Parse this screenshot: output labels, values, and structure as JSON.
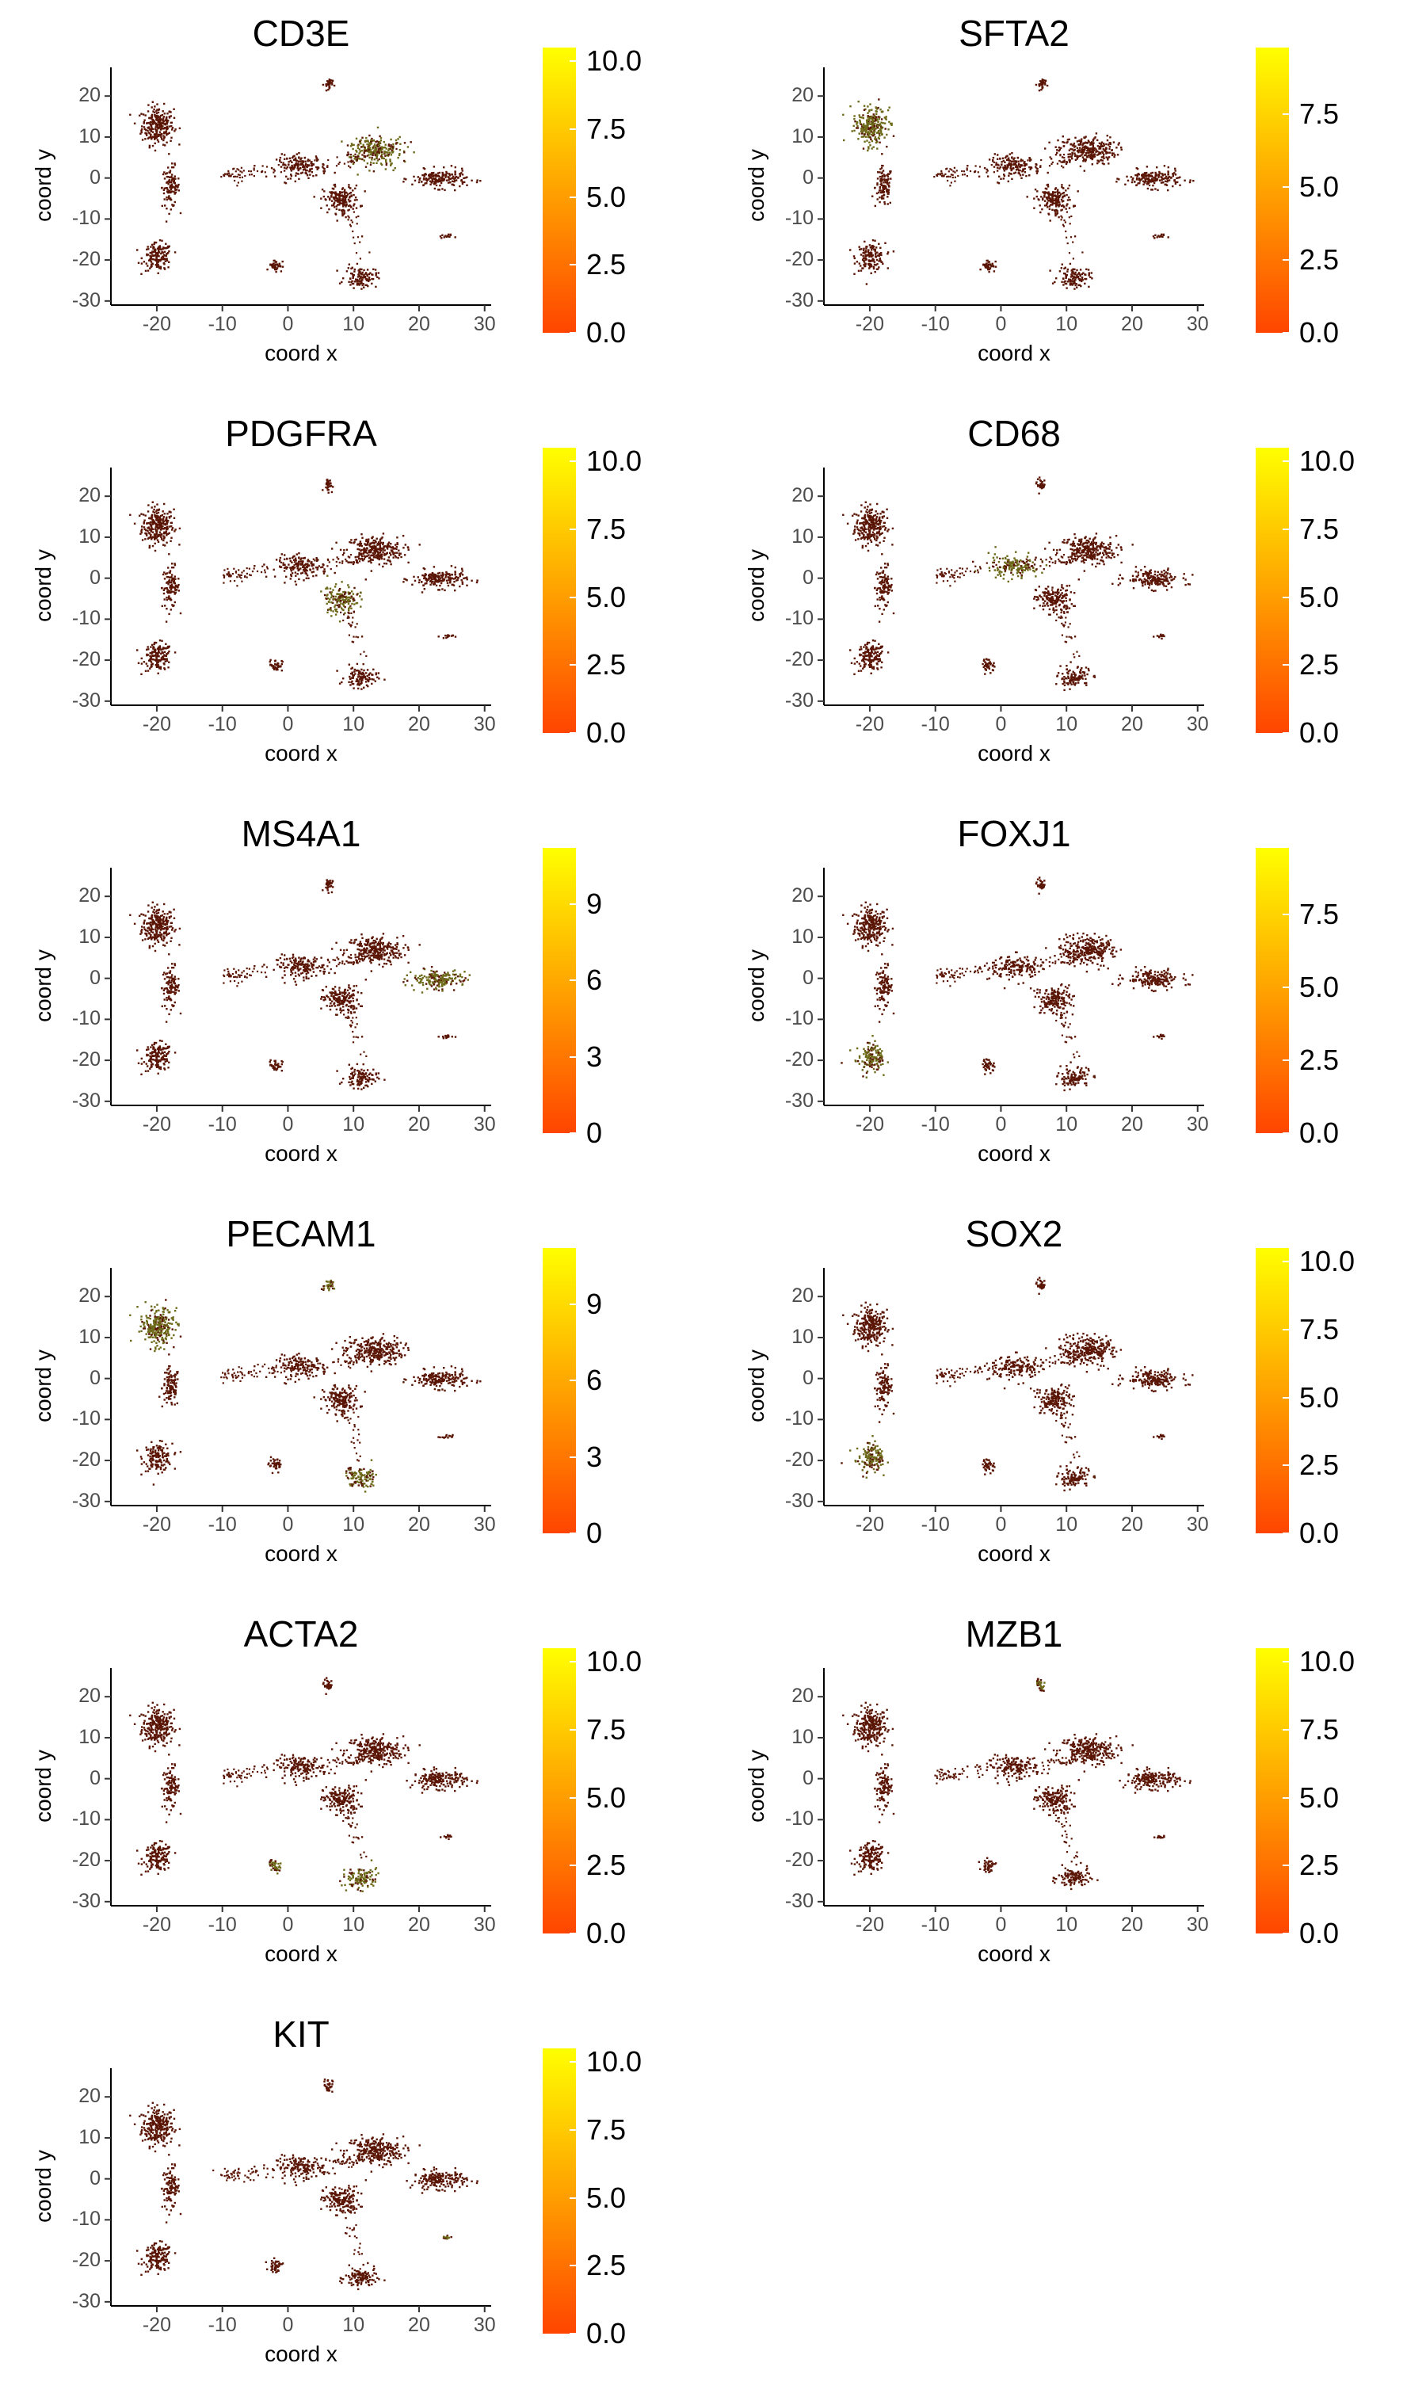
{
  "colors": {
    "background": "#ffffff",
    "low": "#ff4500",
    "high": "#ffff00",
    "point_base": "#5a1505",
    "point_expr": "#6d6a1a"
  },
  "chart_data": [
    {
      "type": "scatter",
      "title": "CD3E",
      "xlabel": "coord x",
      "ylabel": "coord y",
      "x_ticks": [
        "-20",
        "-10",
        "0",
        "10",
        "20",
        "30"
      ],
      "y_ticks": [
        "20",
        "10",
        "0",
        "-10",
        "-20",
        "-30"
      ],
      "xlim": [
        -27,
        31
      ],
      "ylim": [
        -31,
        27
      ],
      "color_scale": {
        "min": 0,
        "max": 10.5,
        "ticks": [
          "0.0",
          "2.5",
          "5.0",
          "7.5",
          "10.0"
        ],
        "tick_values": [
          0,
          2.5,
          5,
          7.5,
          10
        ]
      },
      "highlight": [
        "center-upper-right"
      ]
    },
    {
      "type": "scatter",
      "title": "SFTA2",
      "xlabel": "coord x",
      "ylabel": "coord y",
      "x_ticks": [
        "-20",
        "-10",
        "0",
        "10",
        "20",
        "30"
      ],
      "y_ticks": [
        "20",
        "10",
        "0",
        "-10",
        "-20",
        "-30"
      ],
      "xlim": [
        -27,
        31
      ],
      "ylim": [
        -31,
        27
      ],
      "color_scale": {
        "min": 0,
        "max": 9.8,
        "ticks": [
          "0.0",
          "2.5",
          "5.0",
          "7.5"
        ],
        "tick_values": [
          0,
          2.5,
          5,
          7.5
        ]
      },
      "highlight": [
        "left-top"
      ]
    },
    {
      "type": "scatter",
      "title": "PDGFRA",
      "xlabel": "coord x",
      "ylabel": "coord y",
      "x_ticks": [
        "-20",
        "-10",
        "0",
        "10",
        "20",
        "30"
      ],
      "y_ticks": [
        "20",
        "10",
        "0",
        "-10",
        "-20",
        "-30"
      ],
      "xlim": [
        -27,
        31
      ],
      "ylim": [
        -31,
        27
      ],
      "color_scale": {
        "min": 0,
        "max": 10.5,
        "ticks": [
          "0.0",
          "2.5",
          "5.0",
          "7.5",
          "10.0"
        ],
        "tick_values": [
          0,
          2.5,
          5,
          7.5,
          10
        ]
      },
      "highlight": [
        "center-middle"
      ]
    },
    {
      "type": "scatter",
      "title": "CD68",
      "xlabel": "coord x",
      "ylabel": "coord y",
      "x_ticks": [
        "-20",
        "-10",
        "0",
        "10",
        "20",
        "30"
      ],
      "y_ticks": [
        "20",
        "10",
        "0",
        "-10",
        "-20",
        "-30"
      ],
      "xlim": [
        -27,
        31
      ],
      "ylim": [
        -31,
        27
      ],
      "color_scale": {
        "min": 0,
        "max": 10.5,
        "ticks": [
          "0.0",
          "2.5",
          "5.0",
          "7.5",
          "10.0"
        ],
        "tick_values": [
          0,
          2.5,
          5,
          7.5,
          10
        ]
      },
      "highlight": [
        "center-left"
      ]
    },
    {
      "type": "scatter",
      "title": "MS4A1",
      "xlabel": "coord x",
      "ylabel": "coord y",
      "x_ticks": [
        "-20",
        "-10",
        "0",
        "10",
        "20",
        "30"
      ],
      "y_ticks": [
        "20",
        "10",
        "0",
        "-10",
        "-20",
        "-30"
      ],
      "xlim": [
        -27,
        31
      ],
      "ylim": [
        -31,
        27
      ],
      "color_scale": {
        "min": 0,
        "max": 11.2,
        "ticks": [
          "0",
          "3",
          "6",
          "9"
        ],
        "tick_values": [
          0,
          3,
          6,
          9
        ]
      },
      "highlight": [
        "right-arm"
      ]
    },
    {
      "type": "scatter",
      "title": "FOXJ1",
      "xlabel": "coord x",
      "ylabel": "coord y",
      "x_ticks": [
        "-20",
        "-10",
        "0",
        "10",
        "20",
        "30"
      ],
      "y_ticks": [
        "20",
        "10",
        "0",
        "-10",
        "-20",
        "-30"
      ],
      "xlim": [
        -27,
        31
      ],
      "ylim": [
        -31,
        27
      ],
      "color_scale": {
        "min": 0,
        "max": 9.8,
        "ticks": [
          "0.0",
          "2.5",
          "5.0",
          "7.5"
        ],
        "tick_values": [
          0,
          2.5,
          5,
          7.5
        ]
      },
      "highlight": [
        "left-bottom"
      ]
    },
    {
      "type": "scatter",
      "title": "PECAM1",
      "xlabel": "coord x",
      "ylabel": "coord y",
      "x_ticks": [
        "-20",
        "-10",
        "0",
        "10",
        "20",
        "30"
      ],
      "y_ticks": [
        "20",
        "10",
        "0",
        "-10",
        "-20",
        "-30"
      ],
      "xlim": [
        -27,
        31
      ],
      "ylim": [
        -31,
        27
      ],
      "color_scale": {
        "min": 0,
        "max": 11.2,
        "ticks": [
          "0",
          "3",
          "6",
          "9"
        ],
        "tick_values": [
          0,
          3,
          6,
          9
        ]
      },
      "highlight": [
        "left-top",
        "bottom-tail",
        "top-small"
      ]
    },
    {
      "type": "scatter",
      "title": "SOX2",
      "xlabel": "coord x",
      "ylabel": "coord y",
      "x_ticks": [
        "-20",
        "-10",
        "0",
        "10",
        "20",
        "30"
      ],
      "y_ticks": [
        "20",
        "10",
        "0",
        "-10",
        "-20",
        "-30"
      ],
      "xlim": [
        -27,
        31
      ],
      "ylim": [
        -31,
        27
      ],
      "color_scale": {
        "min": 0,
        "max": 10.5,
        "ticks": [
          "0.0",
          "2.5",
          "5.0",
          "7.5",
          "10.0"
        ],
        "tick_values": [
          0,
          2.5,
          5,
          7.5,
          10
        ]
      },
      "highlight": [
        "left-bottom"
      ]
    },
    {
      "type": "scatter",
      "title": "ACTA2",
      "xlabel": "coord x",
      "ylabel": "coord y",
      "x_ticks": [
        "-20",
        "-10",
        "0",
        "10",
        "20",
        "30"
      ],
      "y_ticks": [
        "20",
        "10",
        "0",
        "-10",
        "-20",
        "-30"
      ],
      "xlim": [
        -27,
        31
      ],
      "ylim": [
        -31,
        27
      ],
      "color_scale": {
        "min": 0,
        "max": 10.5,
        "ticks": [
          "0.0",
          "2.5",
          "5.0",
          "7.5",
          "10.0"
        ],
        "tick_values": [
          0,
          2.5,
          5,
          7.5,
          10
        ]
      },
      "highlight": [
        "bottom-small",
        "bottom-tail"
      ]
    },
    {
      "type": "scatter",
      "title": "MZB1",
      "xlabel": "coord x",
      "ylabel": "coord y",
      "x_ticks": [
        "-20",
        "-10",
        "0",
        "10",
        "20",
        "30"
      ],
      "y_ticks": [
        "20",
        "10",
        "0",
        "-10",
        "-20",
        "-30"
      ],
      "xlim": [
        -27,
        31
      ],
      "ylim": [
        -31,
        27
      ],
      "color_scale": {
        "min": 0,
        "max": 10.5,
        "ticks": [
          "0.0",
          "2.5",
          "5.0",
          "7.5",
          "10.0"
        ],
        "tick_values": [
          0,
          2.5,
          5,
          7.5,
          10
        ]
      },
      "highlight": [
        "top-small"
      ]
    },
    {
      "type": "scatter",
      "title": "KIT",
      "xlabel": "coord x",
      "ylabel": "coord y",
      "x_ticks": [
        "-20",
        "-10",
        "0",
        "10",
        "20",
        "30"
      ],
      "y_ticks": [
        "20",
        "10",
        "0",
        "-10",
        "-20",
        "-30"
      ],
      "xlim": [
        -27,
        31
      ],
      "ylim": [
        -31,
        27
      ],
      "color_scale": {
        "min": 0,
        "max": 10.5,
        "ticks": [
          "0.0",
          "2.5",
          "5.0",
          "7.5",
          "10.0"
        ],
        "tick_values": [
          0,
          2.5,
          5,
          7.5,
          10
        ]
      },
      "highlight": [
        "right-small"
      ]
    }
  ]
}
